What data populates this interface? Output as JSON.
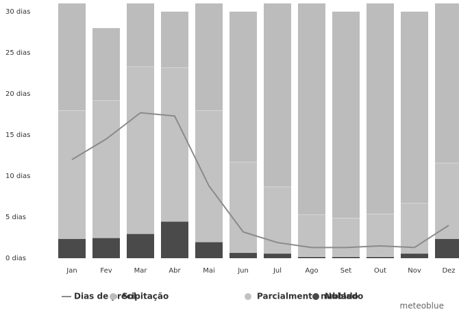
{
  "chart_data": {
    "type": "bar",
    "categories": [
      "Jan",
      "Fev",
      "Mar",
      "Abr",
      "Mai",
      "Jun",
      "Jul",
      "Ago",
      "Set",
      "Out",
      "Nov",
      "Dez"
    ],
    "series": [
      {
        "name": "Nublado",
        "color": "#4a4a4a",
        "values": [
          2.4,
          2.5,
          3,
          4.5,
          2,
          0.7,
          0.6,
          0.2,
          0.2,
          0.2,
          0.6,
          2.4
        ]
      },
      {
        "name": "Parcialmente nublado",
        "color": "#c2c2c2",
        "values": [
          15.6,
          16.7,
          20.3,
          18.7,
          16,
          11,
          8.1,
          5.1,
          4.7,
          5.2,
          6.1,
          9.2
        ]
      },
      {
        "name": "Sol",
        "color": "#bcbcbc",
        "values": [
          13,
          8.8,
          7.7,
          6.8,
          13,
          18.3,
          22.3,
          25.7,
          25.1,
          25.6,
          23.3,
          19.4
        ]
      },
      {
        "name": "Dias de precipitação",
        "type": "line",
        "color": "#8a8a8a",
        "values": [
          12,
          14.5,
          17.7,
          17.3,
          8.8,
          3.2,
          1.9,
          1.3,
          1.3,
          1.5,
          1.3,
          4
        ]
      }
    ],
    "ylim": [
      0,
      30
    ],
    "yticks": [
      {
        "value": 0,
        "label": "0 dias"
      },
      {
        "value": 5,
        "label": "5 dias"
      },
      {
        "value": 10,
        "label": "10 dias"
      },
      {
        "value": 15,
        "label": "15 dias"
      },
      {
        "value": 20,
        "label": "20 dias"
      },
      {
        "value": 25,
        "label": "25 dias"
      },
      {
        "value": 30,
        "label": "30 dias"
      }
    ],
    "legend": "bottom",
    "watermark": "meteoblue"
  }
}
